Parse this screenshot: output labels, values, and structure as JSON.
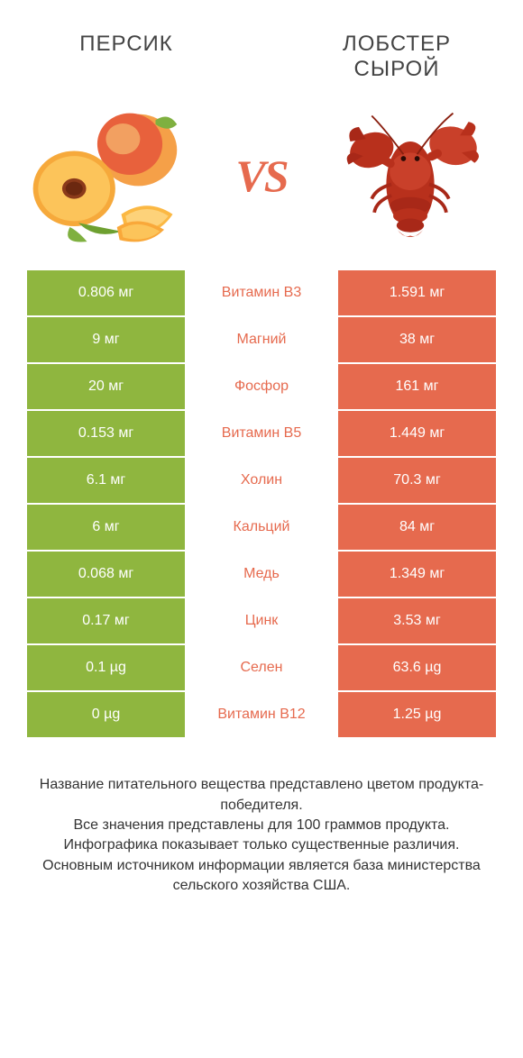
{
  "colors": {
    "left_bg": "#8fb63f",
    "right_bg": "#e66a4e",
    "mid_left": "#8fb63f",
    "mid_right": "#e66a4e",
    "text_white": "#ffffff"
  },
  "header": {
    "left_title": "ПЕРСИК",
    "right_title": "ЛОБСТЕР СЫРОЙ",
    "vs": "VS"
  },
  "rows": [
    {
      "left": "0.806 мг",
      "label": "Витамин B3",
      "right": "1.591 мг",
      "winner": "right"
    },
    {
      "left": "9 мг",
      "label": "Магний",
      "right": "38 мг",
      "winner": "right"
    },
    {
      "left": "20 мг",
      "label": "Фосфор",
      "right": "161 мг",
      "winner": "right"
    },
    {
      "left": "0.153 мг",
      "label": "Витамин B5",
      "right": "1.449 мг",
      "winner": "right"
    },
    {
      "left": "6.1 мг",
      "label": "Холин",
      "right": "70.3 мг",
      "winner": "right"
    },
    {
      "left": "6 мг",
      "label": "Кальций",
      "right": "84 мг",
      "winner": "right"
    },
    {
      "left": "0.068 мг",
      "label": "Медь",
      "right": "1.349 мг",
      "winner": "right"
    },
    {
      "left": "0.17 мг",
      "label": "Цинк",
      "right": "3.53 мг",
      "winner": "right"
    },
    {
      "left": "0.1 µg",
      "label": "Селен",
      "right": "63.6 µg",
      "winner": "right"
    },
    {
      "left": "0 µg",
      "label": "Витамин B12",
      "right": "1.25 µg",
      "winner": "right"
    }
  ],
  "footer": {
    "line1": "Название питательного вещества представлено цветом продукта-победителя.",
    "line2": "Все значения представлены для 100 граммов продукта.",
    "line3": "Инфографика показывает только существенные различия.",
    "line4": "Основным источником информации является база министерства сельского хозяйства США."
  }
}
